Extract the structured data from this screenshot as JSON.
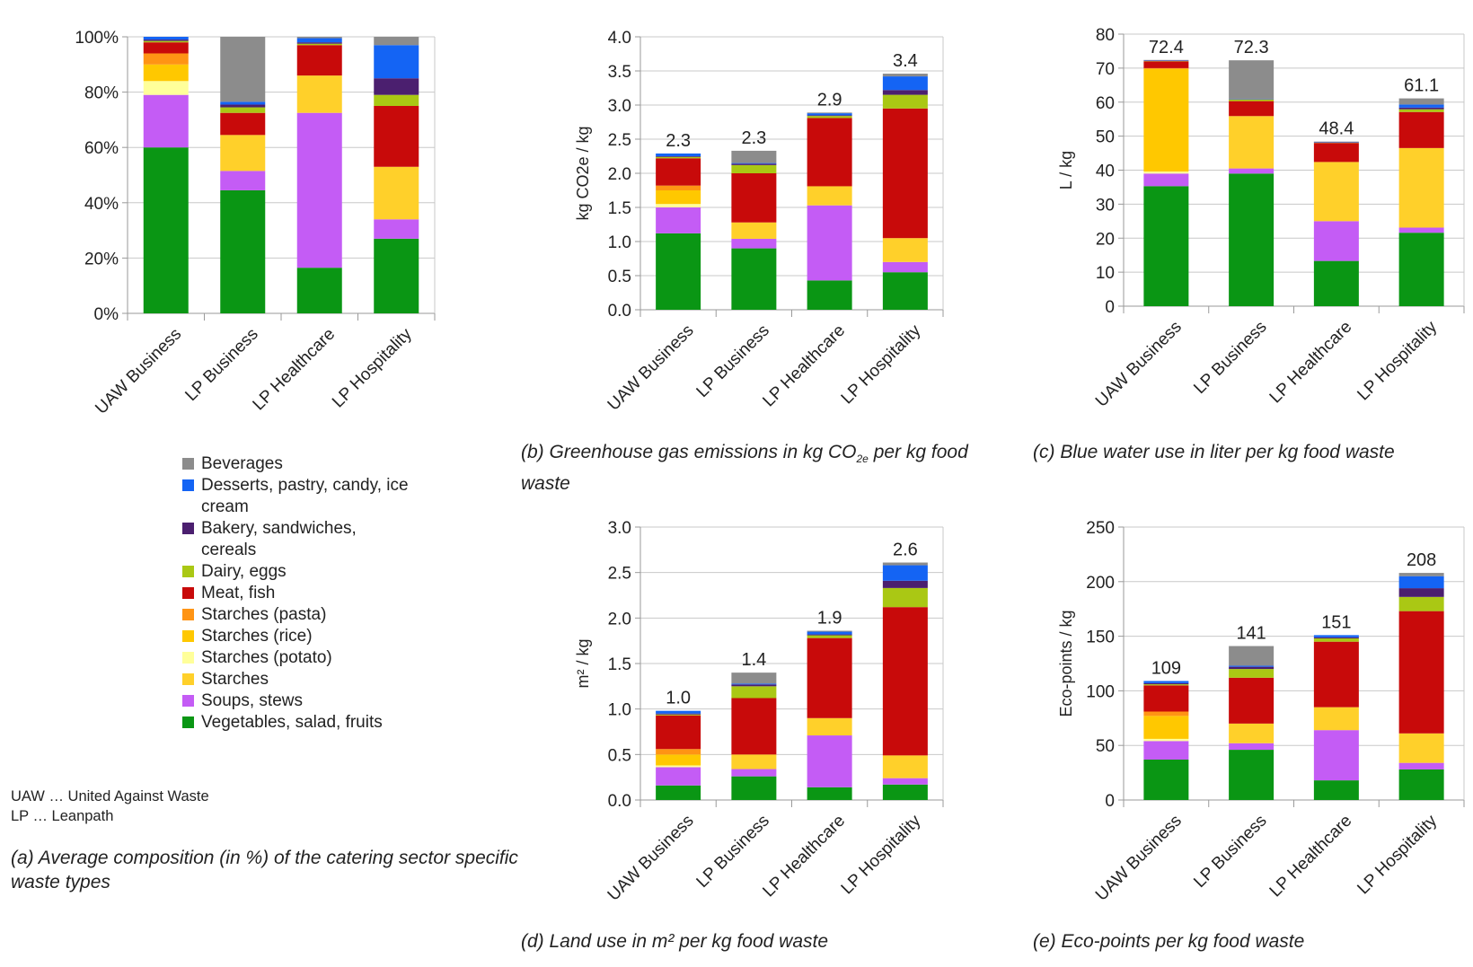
{
  "categories": [
    "UAW Business",
    "LP Business",
    "LP Healthcare",
    "LP Hospitality"
  ],
  "legend": [
    {
      "key": "beverages",
      "label": "Beverages",
      "color": "#8c8c8c"
    },
    {
      "key": "desserts",
      "label": "Desserts, pastry, candy, ice cream",
      "color": "#1464f4"
    },
    {
      "key": "bakery",
      "label": "Bakery, sandwiches, cereals",
      "color": "#4b1f6f"
    },
    {
      "key": "dairy",
      "label": "Dairy, eggs",
      "color": "#aac814"
    },
    {
      "key": "meat",
      "label": "Meat, fish",
      "color": "#c80a0a"
    },
    {
      "key": "pasta",
      "label": "Starches (pasta)",
      "color": "#ff9414"
    },
    {
      "key": "rice",
      "label": "Starches (rice)",
      "color": "#ffc800"
    },
    {
      "key": "potato",
      "label": "Starches (potato)",
      "color": "#ffff9a"
    },
    {
      "key": "starches",
      "label": "Starches",
      "color": "#ffd02a"
    },
    {
      "key": "soups",
      "label": "Soups, stews",
      "color": "#c45cf5"
    },
    {
      "key": "veg",
      "label": "Vegetables, salad, fruits",
      "color": "#0a9614"
    }
  ],
  "abbreviations": [
    "UAW … United Against Waste",
    "LP … Leanpath"
  ],
  "captions": {
    "a": "(a) Average composition (in %) of the catering sector specific waste types",
    "b_pre": "(b) Greenhouse gas emissions in kg CO",
    "b_sub": "2e",
    "b_post": " per kg food waste",
    "c": "(c) Blue water use in liter per kg food waste",
    "d": "(d) Land use in m² per kg food waste",
    "e": "(e) Eco-points per kg food waste"
  },
  "chart_data": [
    {
      "id": "a",
      "type": "bar",
      "stacked": true,
      "title": "Average composition (in %) of the catering sector specific waste types",
      "ylabel": "",
      "ylim": [
        0,
        100
      ],
      "yticks": [
        0,
        20,
        40,
        60,
        80,
        100
      ],
      "tick_labels": [
        "0%",
        "20%",
        "40%",
        "60%",
        "80%",
        "100%"
      ],
      "totals": null,
      "series": [
        {
          "key": "veg",
          "values": [
            60,
            44.5,
            16.5,
            27
          ]
        },
        {
          "key": "soups",
          "values": [
            19,
            7,
            56,
            7
          ]
        },
        {
          "key": "starches",
          "values": [
            0,
            13,
            13.5,
            19
          ]
        },
        {
          "key": "potato",
          "values": [
            5,
            0,
            0,
            0
          ]
        },
        {
          "key": "rice",
          "values": [
            6,
            0,
            0,
            0
          ]
        },
        {
          "key": "pasta",
          "values": [
            4,
            0,
            0,
            0
          ]
        },
        {
          "key": "meat",
          "values": [
            4,
            8,
            11,
            22
          ]
        },
        {
          "key": "dairy",
          "values": [
            0.5,
            2,
            0.5,
            4
          ]
        },
        {
          "key": "bakery",
          "values": [
            0.5,
            1,
            0.5,
            6
          ]
        },
        {
          "key": "desserts",
          "values": [
            1,
            1,
            1.5,
            12
          ]
        },
        {
          "key": "beverages",
          "values": [
            0,
            23.5,
            0.5,
            3
          ]
        }
      ]
    },
    {
      "id": "b",
      "type": "bar",
      "stacked": true,
      "title": "Greenhouse gas emissions in kg CO2e per kg food waste",
      "ylabel": "kg CO2e / kg",
      "ylim": [
        0,
        4
      ],
      "yticks": [
        0,
        0.5,
        1,
        1.5,
        2,
        2.5,
        3,
        3.5,
        4
      ],
      "tick_labels": [
        "0.0",
        "0.5",
        "1.0",
        "1.5",
        "2.0",
        "2.5",
        "3.0",
        "3.5",
        "4.0"
      ],
      "totals": [
        "2.3",
        "2.3",
        "2.9",
        "3.4"
      ],
      "series": [
        {
          "key": "veg",
          "values": [
            1.12,
            0.9,
            0.43,
            0.55
          ]
        },
        {
          "key": "soups",
          "values": [
            0.38,
            0.14,
            1.1,
            0.15
          ]
        },
        {
          "key": "starches",
          "values": [
            0,
            0.24,
            0.28,
            0.35
          ]
        },
        {
          "key": "potato",
          "values": [
            0.05,
            0,
            0,
            0
          ]
        },
        {
          "key": "rice",
          "values": [
            0.2,
            0,
            0,
            0
          ]
        },
        {
          "key": "pasta",
          "values": [
            0.07,
            0,
            0,
            0
          ]
        },
        {
          "key": "meat",
          "values": [
            0.4,
            0.72,
            1.0,
            1.9
          ]
        },
        {
          "key": "dairy",
          "values": [
            0.02,
            0.12,
            0.03,
            0.2
          ]
        },
        {
          "key": "bakery",
          "values": [
            0.01,
            0.02,
            0.01,
            0.07
          ]
        },
        {
          "key": "desserts",
          "values": [
            0.04,
            0.01,
            0.03,
            0.2
          ]
        },
        {
          "key": "beverages",
          "values": [
            0,
            0.18,
            0.01,
            0.04
          ]
        }
      ]
    },
    {
      "id": "c",
      "type": "bar",
      "stacked": true,
      "title": "Blue water use in liter per kg food waste",
      "ylabel": "L / kg",
      "ylim": [
        0,
        80
      ],
      "yticks": [
        0,
        10,
        20,
        30,
        40,
        50,
        60,
        70,
        80
      ],
      "tick_labels": [
        "0",
        "10",
        "20",
        "30",
        "40",
        "50",
        "60",
        "70",
        "80"
      ],
      "totals": [
        "72.4",
        "72.3",
        "48.4",
        "61.1"
      ],
      "series": [
        {
          "key": "veg",
          "values": [
            35.3,
            39,
            13.3,
            21.6
          ]
        },
        {
          "key": "soups",
          "values": [
            3.7,
            1.5,
            11.7,
            1.5
          ]
        },
        {
          "key": "starches",
          "values": [
            0,
            15.4,
            17.4,
            23.4
          ]
        },
        {
          "key": "potato",
          "values": [
            0.6,
            0,
            0,
            0
          ]
        },
        {
          "key": "rice",
          "values": [
            30.2,
            0,
            0,
            0
          ]
        },
        {
          "key": "pasta",
          "values": [
            0.2,
            0,
            0,
            0
          ]
        },
        {
          "key": "meat",
          "values": [
            2,
            4.4,
            5.6,
            10.6
          ]
        },
        {
          "key": "dairy",
          "values": [
            0.1,
            0.5,
            0.1,
            0.8
          ]
        },
        {
          "key": "bakery",
          "values": [
            0.1,
            0.1,
            0.1,
            0.5
          ]
        },
        {
          "key": "desserts",
          "values": [
            0.1,
            0.1,
            0.1,
            0.9
          ]
        },
        {
          "key": "beverages",
          "values": [
            0.1,
            11.3,
            0.1,
            1.8
          ]
        }
      ]
    },
    {
      "id": "d",
      "type": "bar",
      "stacked": true,
      "title": "Land use in m² per kg food waste",
      "ylabel": "m² / kg",
      "ylim": [
        0,
        3
      ],
      "yticks": [
        0,
        0.5,
        1,
        1.5,
        2,
        2.5,
        3
      ],
      "tick_labels": [
        "0.0",
        "0.5",
        "1.0",
        "1.5",
        "2.0",
        "2.5",
        "3.0"
      ],
      "totals": [
        "1.0",
        "1.4",
        "1.9",
        "2.6"
      ],
      "series": [
        {
          "key": "veg",
          "values": [
            0.16,
            0.26,
            0.14,
            0.17
          ]
        },
        {
          "key": "soups",
          "values": [
            0.2,
            0.08,
            0.57,
            0.07
          ]
        },
        {
          "key": "starches",
          "values": [
            0,
            0.16,
            0.19,
            0.25
          ]
        },
        {
          "key": "potato",
          "values": [
            0.02,
            0,
            0,
            0
          ]
        },
        {
          "key": "rice",
          "values": [
            0.12,
            0,
            0,
            0
          ]
        },
        {
          "key": "pasta",
          "values": [
            0.06,
            0,
            0,
            0
          ]
        },
        {
          "key": "meat",
          "values": [
            0.37,
            0.62,
            0.88,
            1.63
          ]
        },
        {
          "key": "dairy",
          "values": [
            0.01,
            0.13,
            0.03,
            0.21
          ]
        },
        {
          "key": "bakery",
          "values": [
            0.01,
            0.02,
            0.01,
            0.08
          ]
        },
        {
          "key": "desserts",
          "values": [
            0.03,
            0.01,
            0.03,
            0.17
          ]
        },
        {
          "key": "beverages",
          "values": [
            0,
            0.12,
            0.01,
            0.03
          ]
        }
      ]
    },
    {
      "id": "e",
      "type": "bar",
      "stacked": true,
      "title": "Eco-points per kg food waste",
      "ylabel": "Eco-points / kg",
      "ylim": [
        0,
        250
      ],
      "yticks": [
        0,
        50,
        100,
        150,
        200,
        250
      ],
      "tick_labels": [
        "0",
        "50",
        "100",
        "150",
        "200",
        "250"
      ],
      "totals": [
        "109",
        "141",
        "151",
        "208"
      ],
      "series": [
        {
          "key": "veg",
          "values": [
            37,
            46,
            18,
            28
          ]
        },
        {
          "key": "soups",
          "values": [
            17,
            6,
            46,
            6
          ]
        },
        {
          "key": "starches",
          "values": [
            0,
            18,
            21,
            27
          ]
        },
        {
          "key": "potato",
          "values": [
            2,
            0,
            0,
            0
          ]
        },
        {
          "key": "rice",
          "values": [
            21,
            0,
            0,
            0
          ]
        },
        {
          "key": "pasta",
          "values": [
            4,
            0,
            0,
            0
          ]
        },
        {
          "key": "meat",
          "values": [
            24,
            42,
            60,
            112
          ]
        },
        {
          "key": "dairy",
          "values": [
            1,
            8,
            3,
            13
          ]
        },
        {
          "key": "bakery",
          "values": [
            1,
            2,
            1,
            8
          ]
        },
        {
          "key": "desserts",
          "values": [
            2,
            1,
            2,
            11
          ]
        },
        {
          "key": "beverages",
          "values": [
            0,
            18,
            0,
            3
          ]
        }
      ]
    }
  ]
}
